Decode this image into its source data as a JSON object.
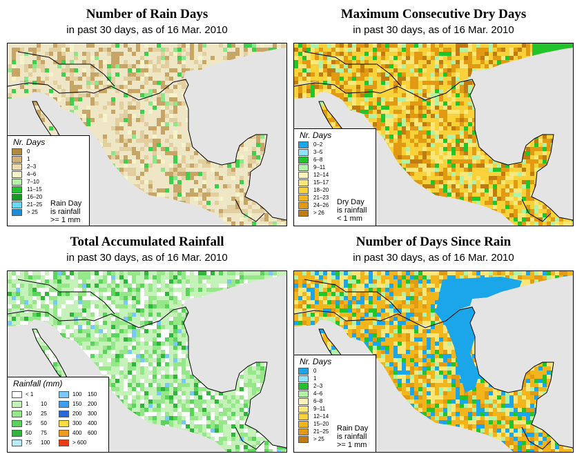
{
  "panels": [
    {
      "title": "Number of Rain Days",
      "subtitle": "in past 30 days, as of  16 Mar. 2010",
      "legend_title": "Nr. Days",
      "legend": [
        {
          "label": "0",
          "color": "#b08a3e"
        },
        {
          "label": "1",
          "color": "#d2b47a"
        },
        {
          "label": "2–3",
          "color": "#ecd9ad"
        },
        {
          "label": "4–6",
          "color": "#f7f3c8"
        },
        {
          "label": "7–10",
          "color": "#b6f0aa"
        },
        {
          "label": "11–15",
          "color": "#22c32e"
        },
        {
          "label": "16–20",
          "color": "#169a24"
        },
        {
          "label": "21–25",
          "color": "#6ad8f8"
        },
        {
          "label": "> 25",
          "color": "#1c8ed8"
        }
      ],
      "note": [
        "Rain Day",
        "is rainfall",
        ">= 1 mm"
      ]
    },
    {
      "title": "Maximum Consecutive Dry Days",
      "subtitle": "in past 30 days, as of  16 Mar. 2010",
      "legend_title": "Nr. Days",
      "legend": [
        {
          "label": "0–2",
          "color": "#1aa6e8"
        },
        {
          "label": "3–5",
          "color": "#8fe3fb"
        },
        {
          "label": "6–8",
          "color": "#21c42a"
        },
        {
          "label": "9–11",
          "color": "#b2f2a6"
        },
        {
          "label": "12–14",
          "color": "#fbf5b9"
        },
        {
          "label": "15–17",
          "color": "#fbe67a"
        },
        {
          "label": "18–20",
          "color": "#f8d23a"
        },
        {
          "label": "21–23",
          "color": "#f2b51c"
        },
        {
          "label": "24–26",
          "color": "#e29a12"
        },
        {
          "label": "> 26",
          "color": "#c07c10"
        }
      ],
      "note": [
        "Dry Day",
        "is rainfall",
        "< 1 mm"
      ]
    },
    {
      "title": "Total Accumulated Rainfall",
      "subtitle": "in past 30 days, as of  16 Mar. 2010",
      "legend_title": "Rainfall (mm)",
      "legend_left": [
        {
          "a": "< 1",
          "b": "",
          "color": "#ffffff"
        },
        {
          "a": "1",
          "b": "10",
          "color": "#c4f2b8"
        },
        {
          "a": "10",
          "b": "25",
          "color": "#96e78a"
        },
        {
          "a": "25",
          "b": "50",
          "color": "#5ad45a"
        },
        {
          "a": "50",
          "b": "75",
          "color": "#2fb53a"
        },
        {
          "a": "75",
          "b": "100",
          "color": "#b8ecfa"
        }
      ],
      "legend_right": [
        {
          "a": "100",
          "b": "150",
          "color": "#7ac8f4"
        },
        {
          "a": "150",
          "b": "200",
          "color": "#3c9ef0"
        },
        {
          "a": "200",
          "b": "300",
          "color": "#2a66d8"
        },
        {
          "a": "300",
          "b": "400",
          "color": "#f8de3c"
        },
        {
          "a": "400",
          "b": "600",
          "color": "#f49a1c"
        },
        {
          "a": "> 600",
          "b": "",
          "color": "#ee3a12"
        }
      ],
      "note": []
    },
    {
      "title": "Number of Days Since Rain",
      "subtitle": "in past 30 days, as of  16 Mar. 2010",
      "legend_title": "Nr. Days",
      "legend": [
        {
          "label": "0",
          "color": "#1aa6e8"
        },
        {
          "label": "1",
          "color": "#8fe3fb"
        },
        {
          "label": "2–3",
          "color": "#21c42a"
        },
        {
          "label": "4–6",
          "color": "#b2f2a6"
        },
        {
          "label": "6–8",
          "color": "#fbf5b9"
        },
        {
          "label": "9–11",
          "color": "#fbe67a"
        },
        {
          "label": "12–14",
          "color": "#f8d23a"
        },
        {
          "label": "15–20",
          "color": "#f2b51c"
        },
        {
          "label": "21–25",
          "color": "#e29a12"
        },
        {
          "label": "> 25",
          "color": "#c07c10"
        }
      ],
      "note": [
        "Rain Day",
        "is rainfall",
        ">= 1 mm"
      ]
    }
  ]
}
